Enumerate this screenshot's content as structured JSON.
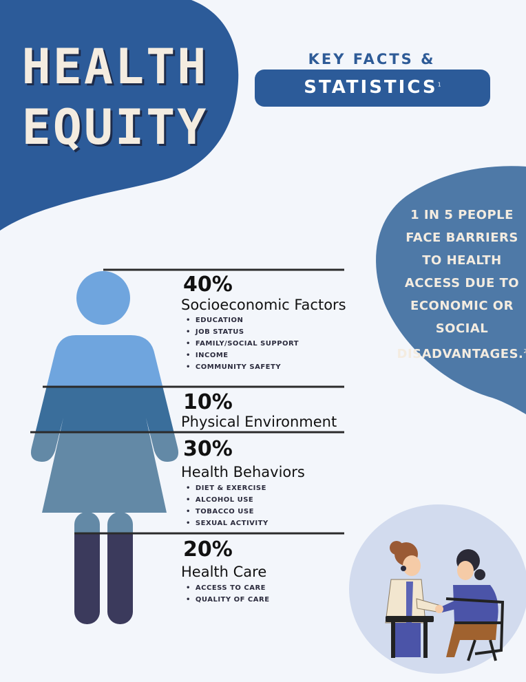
{
  "title": {
    "line1": "HEALTH",
    "line2": "EQUITY"
  },
  "key_facts": {
    "line1": "KEY FACTS &",
    "line2": "STATISTICS",
    "footnote": "1"
  },
  "barrier_stat": {
    "text": "1 IN 5 PEOPLE FACE BARRIERS TO HEALTH ACCESS DUE TO ECONOMIC OR SOCIAL DISADVANTAGES.",
    "footnote": "2"
  },
  "factors": [
    {
      "percent": "40%",
      "label": "Socioeconomic Factors",
      "items": [
        "EDUCATION",
        "JOB STATUS",
        "FAMILY/SOCIAL SUPPORT",
        "INCOME",
        "COMMUNITY SAFETY"
      ]
    },
    {
      "percent": "10%",
      "label": "Physical Environment",
      "items": []
    },
    {
      "percent": "30%",
      "label": "Health Behaviors",
      "items": [
        "DIET & EXERCISE",
        "ALCOHOL USE",
        "TOBACCO USE",
        "SEXUAL ACTIVITY"
      ]
    },
    {
      "percent": "20%",
      "label": "Health Care",
      "items": [
        "ACCESS TO CARE",
        "QUALITY OF CARE"
      ]
    }
  ],
  "colors": {
    "dark_blue": "#2c5b99",
    "blob_blue": "#4e79a7",
    "cream": "#f4ece0",
    "fig_light": "#6fa5de",
    "fig_mid": "#3a6e9b",
    "fig_gray": "#6389a6",
    "fig_dark": "#3b3a5c",
    "illustration_bg": "#d2dbee"
  },
  "illustration": "doctor-patient-illustration"
}
